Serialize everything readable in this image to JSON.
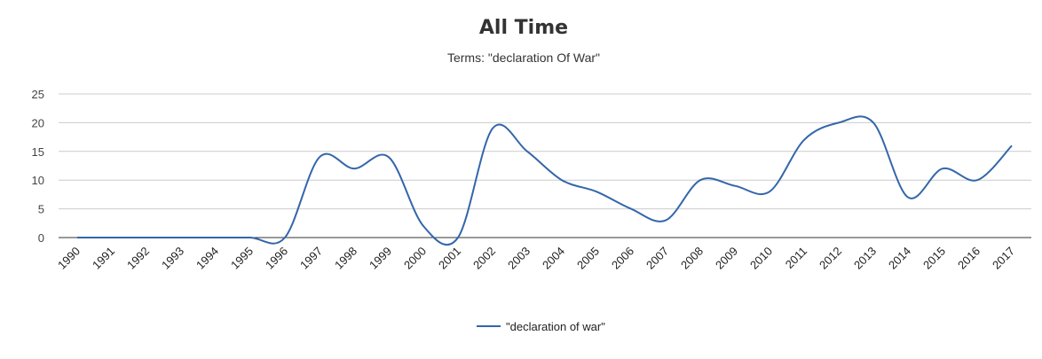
{
  "chart_data": {
    "type": "line",
    "title": "All Time",
    "subtitle": "Terms: \"declaration Of War\"",
    "xlabel": "",
    "ylabel": "",
    "ylim": [
      0,
      25
    ],
    "yticks": [
      0,
      5,
      10,
      15,
      20,
      25
    ],
    "grid": true,
    "legend_position": "bottom",
    "categories": [
      "1990",
      "1991",
      "1992",
      "1993",
      "1994",
      "1995",
      "1996",
      "1997",
      "1998",
      "1999",
      "2000",
      "2001",
      "2002",
      "2003",
      "2004",
      "2005",
      "2006",
      "2007",
      "2008",
      "2009",
      "2010",
      "2011",
      "2012",
      "2013",
      "2014",
      "2015",
      "2016",
      "2017"
    ],
    "series": [
      {
        "name": "\"declaration of war\"",
        "color": "#3366aa",
        "values": [
          0,
          0,
          0,
          0,
          0,
          0,
          0,
          14,
          12,
          14,
          2,
          0,
          19,
          15,
          10,
          8,
          5,
          3,
          10,
          9,
          8,
          17,
          20,
          20,
          7,
          12,
          10,
          16
        ]
      }
    ]
  }
}
